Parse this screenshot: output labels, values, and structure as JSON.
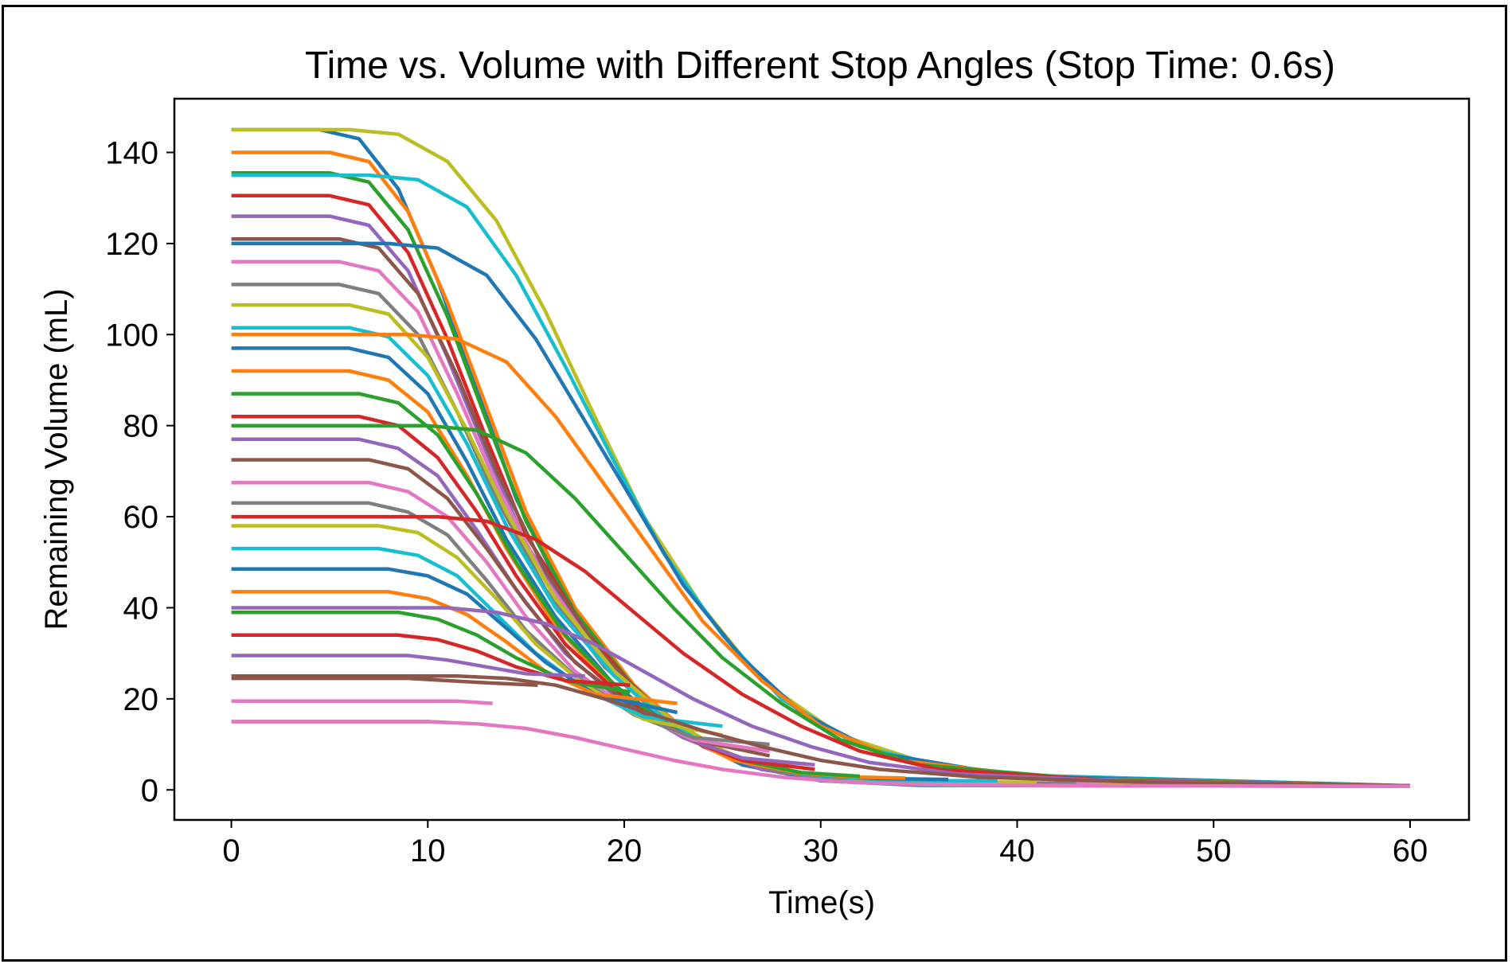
{
  "chart_data": {
    "type": "line",
    "title": "Time vs. Volume with Different Stop Angles (Stop Time: 0.6s)",
    "xlabel": "Time(s)",
    "ylabel": "Remaining Volume (mL)",
    "xlim": [
      -2.9,
      63.0
    ],
    "ylim": [
      -6.6,
      151.8
    ],
    "xticks": [
      0,
      10,
      20,
      30,
      40,
      50,
      60
    ],
    "yticks": [
      0,
      20,
      40,
      60,
      80,
      100,
      120,
      140
    ],
    "grid": false,
    "legend": "none",
    "colors": [
      "#1f77b4",
      "#ff7f0e",
      "#2ca02c",
      "#d62728",
      "#9467bd",
      "#8c564b",
      "#e377c2",
      "#7f7f7f",
      "#bcbd22",
      "#17becf"
    ],
    "series": [
      {
        "x": [
          0,
          4.5,
          6.5,
          8.5,
          10.5,
          12.5,
          14.5,
          17,
          20,
          23,
          26,
          30,
          35,
          45,
          60
        ],
        "values": [
          145,
          145,
          143,
          132,
          112,
          88,
          64,
          42,
          24,
          12,
          5.5,
          2,
          1,
          0.9,
          0.8
        ]
      },
      {
        "x": [
          0,
          5,
          7,
          9,
          11,
          13,
          15,
          17.5,
          20.5,
          23.5,
          27,
          31,
          36,
          45,
          58
        ],
        "values": [
          140,
          140,
          138,
          127,
          107,
          84,
          61,
          40,
          23,
          11.5,
          5,
          2,
          1.1,
          0.9,
          0.9
        ]
      },
      {
        "x": [
          0,
          5,
          7,
          9,
          11,
          13,
          15,
          17.5,
          20.5,
          23.5,
          27,
          31,
          36,
          45,
          55
        ],
        "values": [
          135.5,
          135.5,
          133.5,
          123,
          104,
          81,
          59,
          39,
          22.5,
          11,
          5,
          2,
          1.1,
          1,
          1
        ]
      },
      {
        "x": [
          0,
          5,
          7,
          9,
          11,
          13,
          15,
          18,
          21,
          24,
          27,
          31,
          36,
          45,
          53
        ],
        "values": [
          130.5,
          130.5,
          128.5,
          118,
          99,
          77,
          56,
          35,
          20,
          10,
          4.5,
          2,
          1.2,
          1.1,
          1
        ]
      },
      {
        "x": [
          0,
          5,
          7,
          9,
          11,
          13,
          15,
          18,
          21,
          24,
          27,
          31,
          36,
          45,
          50
        ],
        "values": [
          126,
          126,
          124,
          114,
          95,
          74,
          54,
          34,
          19.5,
          9.5,
          4.5,
          2,
          1.3,
          1.2,
          1.1
        ]
      },
      {
        "x": [
          0,
          5.5,
          7.5,
          9.5,
          11.5,
          13.5,
          16,
          19,
          22,
          25,
          28,
          32,
          37,
          45,
          48
        ],
        "values": [
          121,
          121,
          119,
          109,
          91,
          70,
          48,
          29,
          16.5,
          8.5,
          4,
          1.9,
          1.4,
          1.3,
          1.2
        ]
      },
      {
        "x": [
          0,
          5.5,
          7.5,
          9.5,
          11.5,
          13.5,
          16,
          19,
          22,
          25,
          28,
          32,
          37,
          43,
          46
        ],
        "values": [
          116,
          116,
          114,
          105,
          87,
          67,
          46,
          28,
          16,
          8,
          3.8,
          1.9,
          1.5,
          1.4,
          1.4
        ]
      },
      {
        "x": [
          0,
          5.5,
          7.5,
          9.5,
          11.5,
          13.5,
          16,
          19,
          22,
          25,
          28,
          32,
          37,
          43
        ],
        "values": [
          111,
          111,
          109,
          100,
          83,
          64,
          44,
          27,
          15.5,
          7.8,
          3.8,
          2,
          1.6,
          1.5
        ]
      },
      {
        "x": [
          0,
          6,
          8,
          10,
          12,
          14,
          16.5,
          19.5,
          22.5,
          25.5,
          29,
          33,
          38,
          41
        ],
        "values": [
          106.5,
          106.5,
          104.5,
          95,
          79,
          61,
          42,
          26,
          15,
          7.5,
          3.5,
          2,
          1.7,
          1.7
        ]
      },
      {
        "x": [
          0,
          6,
          8,
          10,
          12,
          14,
          16.5,
          19.5,
          22.5,
          25.5,
          29,
          33,
          36,
          39
        ],
        "values": [
          101.5,
          101.5,
          99.5,
          91,
          76,
          58,
          40,
          25,
          14,
          7,
          3.4,
          2.2,
          2,
          2
        ]
      },
      {
        "x": [
          0,
          6,
          8,
          10,
          12,
          14,
          16.5,
          19.5,
          22.5,
          25.5,
          29,
          33,
          36.5
        ],
        "values": [
          97,
          97,
          95,
          87,
          72,
          55,
          38,
          23,
          13.5,
          6.8,
          3.5,
          2.5,
          2.3
        ]
      },
      {
        "x": [
          0,
          6,
          8,
          10,
          12,
          14,
          16.5,
          19.5,
          22.5,
          25.5,
          29,
          32,
          34.3
        ],
        "values": [
          92,
          92,
          90,
          83,
          69,
          53,
          36,
          22,
          13,
          6.6,
          3.6,
          2.8,
          2.6
        ]
      },
      {
        "x": [
          0,
          6.5,
          8.5,
          10.5,
          12.5,
          14.5,
          17,
          20,
          23,
          26,
          29,
          32
        ],
        "values": [
          87,
          87,
          85,
          78,
          65,
          50,
          34,
          21,
          12,
          6.5,
          3.8,
          3
        ]
      },
      {
        "x": [
          0,
          6.5,
          8.5,
          10.5,
          12.5,
          14.5,
          17,
          20,
          23,
          26,
          29.7
        ],
        "values": [
          82,
          82,
          80,
          73,
          61,
          47,
          32,
          20,
          11.5,
          6.5,
          4.5
        ]
      },
      {
        "x": [
          0,
          6.5,
          8.5,
          10.5,
          12.5,
          14.5,
          17,
          20,
          23,
          26,
          29.7
        ],
        "values": [
          77,
          77,
          75,
          69,
          57,
          44,
          30,
          19,
          11.5,
          7,
          5.5
        ]
      },
      {
        "x": [
          0,
          7,
          9,
          11,
          13,
          15,
          17.5,
          20.5,
          23.5,
          27.4
        ],
        "values": [
          72.5,
          72.5,
          70.5,
          64,
          53,
          41,
          28,
          18,
          11,
          7.5
        ]
      },
      {
        "x": [
          0,
          7,
          9,
          11,
          13,
          15,
          17.5,
          20.5,
          23.5,
          27.4
        ],
        "values": [
          67.5,
          67.5,
          65.5,
          60,
          50,
          38,
          26,
          17,
          11,
          8.5
        ]
      },
      {
        "x": [
          0,
          7,
          9,
          11,
          13,
          15,
          17.5,
          20.5,
          23.5,
          27.4
        ],
        "values": [
          63,
          63,
          61,
          56,
          46,
          35,
          25,
          16.5,
          11.5,
          10
        ]
      },
      {
        "x": [
          0,
          7.5,
          9.5,
          11.5,
          13.5,
          15.5,
          18,
          21,
          25
        ],
        "values": [
          58,
          58,
          56.5,
          51,
          42,
          32,
          23,
          15.5,
          12
        ]
      },
      {
        "x": [
          0,
          7.5,
          9.5,
          11.5,
          13.5,
          15.5,
          18,
          21,
          25
        ],
        "values": [
          53,
          53,
          51.5,
          47,
          38.5,
          30,
          22,
          16,
          14
        ]
      },
      {
        "x": [
          0,
          8,
          10,
          12,
          14,
          16,
          18.5,
          22.7
        ],
        "values": [
          48.5,
          48.5,
          47,
          43,
          35.5,
          28,
          21,
          17
        ]
      },
      {
        "x": [
          0,
          8,
          10,
          12,
          14,
          16,
          18.5,
          22.7
        ],
        "values": [
          43.5,
          43.5,
          42,
          38.5,
          32.5,
          26,
          21,
          19
        ]
      },
      {
        "x": [
          0,
          8.5,
          10.5,
          12.5,
          14.5,
          17,
          20.3
        ],
        "values": [
          39,
          39,
          37.5,
          34,
          29,
          24,
          21.5
        ]
      },
      {
        "x": [
          0,
          8.5,
          10.5,
          12.5,
          14.5,
          17,
          20.3
        ],
        "values": [
          34,
          34,
          33,
          30.5,
          27,
          24,
          23
        ]
      },
      {
        "x": [
          0,
          9,
          11,
          13,
          15,
          18
        ],
        "values": [
          29.5,
          29.5,
          28.5,
          27,
          25.5,
          25
        ]
      },
      {
        "x": [
          0,
          9,
          11,
          13,
          15.6
        ],
        "values": [
          24.5,
          24.5,
          24,
          23.5,
          23
        ]
      },
      {
        "x": [
          0,
          9.5,
          11.5,
          13.3
        ],
        "values": [
          19.5,
          19.5,
          19.5,
          19
        ]
      },
      {
        "x": [
          0,
          10,
          11
        ],
        "values": [
          15,
          15,
          14.8
        ]
      },
      {
        "x": [
          0,
          6,
          8.5,
          11,
          13.5,
          16,
          18.5,
          21,
          24,
          27,
          31,
          36,
          45,
          60
        ],
        "values": [
          145,
          145,
          144,
          138,
          125,
          105,
          82,
          60,
          40,
          24,
          12,
          5,
          1.5,
          0.9
        ]
      },
      {
        "x": [
          0,
          7,
          9.5,
          12,
          14.5,
          17,
          19.5,
          22,
          25,
          28,
          32,
          38,
          60
        ],
        "values": [
          135,
          135,
          134,
          128,
          113,
          93,
          72,
          52,
          34,
          20,
          9.5,
          3.5,
          0.9
        ]
      },
      {
        "x": [
          0,
          8,
          10.5,
          13,
          15.5,
          18,
          20.5,
          23,
          26,
          29,
          33,
          40,
          60
        ],
        "values": [
          120,
          120,
          119,
          113,
          99,
          81,
          63,
          45,
          29,
          17,
          8,
          3,
          0.9
        ]
      },
      {
        "x": [
          0,
          9,
          11.5,
          14,
          16.5,
          19,
          21.5,
          24,
          27,
          30,
          34,
          42,
          60
        ],
        "values": [
          100,
          100,
          99,
          94,
          82,
          67,
          52,
          37,
          24,
          14,
          6.5,
          2.5,
          0.9
        ]
      },
      {
        "x": [
          0,
          10,
          12.5,
          15,
          17.5,
          20,
          22.5,
          25,
          28,
          31,
          35,
          44,
          60
        ],
        "values": [
          80,
          80,
          79,
          74,
          64,
          52,
          40,
          29,
          19,
          11,
          5.5,
          2.2,
          0.9
        ]
      },
      {
        "x": [
          0,
          10.5,
          13,
          15.5,
          18,
          20.5,
          23,
          26,
          29,
          32,
          36,
          45,
          60
        ],
        "values": [
          60,
          60,
          59,
          55,
          48,
          39,
          30,
          21,
          14,
          8.5,
          4.5,
          2,
          0.9
        ]
      },
      {
        "x": [
          0,
          11,
          13.5,
          16,
          18.5,
          21,
          23.5,
          26.5,
          29.5,
          32.5,
          37,
          46,
          60
        ],
        "values": [
          40,
          40,
          39,
          36.5,
          32,
          26,
          20,
          14,
          9.5,
          6,
          3.5,
          1.8,
          0.9
        ]
      },
      {
        "x": [
          0,
          11.5,
          14,
          16.5,
          19,
          21.5,
          24,
          27,
          30,
          33,
          38,
          48,
          60
        ],
        "values": [
          25,
          25,
          24.5,
          23,
          20,
          16.5,
          13,
          9.5,
          6.5,
          4.5,
          2.8,
          1.5,
          0.9
        ]
      },
      {
        "x": [
          0,
          10,
          12.5,
          15,
          17.5,
          20,
          22.5,
          25,
          28,
          31,
          35,
          40,
          48,
          60
        ],
        "values": [
          15,
          15,
          14.5,
          13.5,
          11.5,
          9,
          6.5,
          4.5,
          2.8,
          1.8,
          1.2,
          1,
          0.9,
          0.8
        ]
      }
    ]
  }
}
